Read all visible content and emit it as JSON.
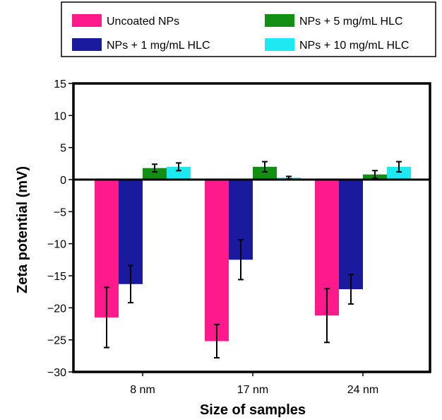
{
  "chart_data": {
    "type": "bar",
    "categories": [
      "8 nm",
      "17 nm",
      "24 nm"
    ],
    "series": [
      {
        "name": "Uncoated NPs",
        "color": "#ff1a8c",
        "values": [
          -21.5,
          -25.2,
          -21.2
        ],
        "errors": [
          4.7,
          2.6,
          4.2
        ]
      },
      {
        "name": "NPs + 1 mg/mL HLC",
        "color": "#1a1a9e",
        "values": [
          -16.3,
          -12.5,
          -17.1
        ],
        "errors": [
          2.9,
          3.1,
          2.3
        ]
      },
      {
        "name": "NPs + 5 mg/mL HLC",
        "color": "#138f13",
        "values": [
          1.8,
          2.0,
          0.8
        ],
        "errors": [
          0.6,
          0.8,
          0.6
        ]
      },
      {
        "name": "NPs + 10 mg/mL HLC",
        "color": "#1ee8f0",
        "values": [
          2.0,
          0.3,
          2.0
        ],
        "errors": [
          0.6,
          0.2,
          0.8
        ]
      }
    ],
    "xlabel": "Size of samples",
    "ylabel": "Zeta potential (mV)",
    "ylim": [
      -30,
      15
    ],
    "yticks": [
      15,
      10,
      5,
      0,
      -5,
      -10,
      -15,
      -20,
      -25,
      -30
    ],
    "ytick_labels": [
      "15",
      "10",
      "5",
      "0",
      "−5",
      "−10",
      "−15",
      "−20",
      "−25",
      "−30"
    ],
    "grid": false,
    "legend_position": "top"
  }
}
